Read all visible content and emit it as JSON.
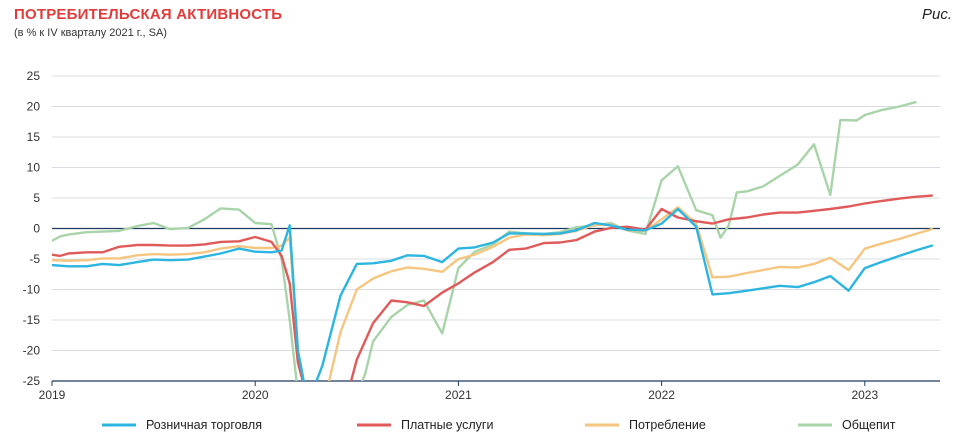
{
  "header": {
    "title": "ПОТРЕБИТЕЛЬСКАЯ АКТИВНОСТЬ",
    "subtitle": "(в % к IV кварталу 2021 г., SA)",
    "figure_label": "Рис."
  },
  "chart_data": {
    "type": "line",
    "title": "ПОТРЕБИТЕЛЬСКАЯ АКТИВНОСТЬ",
    "subtitle": "(в % к IV кварталу 2021 г., SA)",
    "xlabel": "",
    "ylabel": "",
    "ylim": [
      -25,
      25
    ],
    "yticks": [
      -25,
      -20,
      -15,
      -10,
      -5,
      0,
      5,
      10,
      15,
      20,
      25
    ],
    "xlim": [
      2019.0,
      2023.37
    ],
    "xticks": [
      2019,
      2020,
      2021,
      2022,
      2023
    ],
    "xtick_labels": [
      "2019",
      "2020",
      "2021",
      "2022",
      "2023"
    ],
    "grid": "horizontal",
    "legend_position": "bottom",
    "series": [
      {
        "name": "Розничная торговля",
        "color": "#2bb5e0",
        "points": [
          [
            2019.0,
            -6.0
          ],
          [
            2019.08,
            -6.2
          ],
          [
            2019.17,
            -6.2
          ],
          [
            2019.25,
            -5.8
          ],
          [
            2019.33,
            -6.0
          ],
          [
            2019.42,
            -5.5
          ],
          [
            2019.5,
            -5.1
          ],
          [
            2019.58,
            -5.2
          ],
          [
            2019.67,
            -5.1
          ],
          [
            2019.75,
            -4.6
          ],
          [
            2019.83,
            -4.1
          ],
          [
            2019.92,
            -3.3
          ],
          [
            2020.0,
            -3.8
          ],
          [
            2020.08,
            -3.9
          ],
          [
            2020.13,
            -3.6
          ],
          [
            2020.17,
            0.5
          ],
          [
            2020.21,
            -20.0
          ],
          [
            2020.25,
            -27.0
          ],
          [
            2020.29,
            -26.0
          ],
          [
            2020.33,
            -22.5
          ],
          [
            2020.42,
            -11.0
          ],
          [
            2020.5,
            -5.8
          ],
          [
            2020.58,
            -5.7
          ],
          [
            2020.67,
            -5.3
          ],
          [
            2020.75,
            -4.4
          ],
          [
            2020.83,
            -4.5
          ],
          [
            2020.92,
            -5.5
          ],
          [
            2021.0,
            -3.3
          ],
          [
            2021.08,
            -3.1
          ],
          [
            2021.17,
            -2.3
          ],
          [
            2021.25,
            -0.8
          ],
          [
            2021.33,
            -0.8
          ],
          [
            2021.42,
            -0.9
          ],
          [
            2021.5,
            -0.8
          ],
          [
            2021.58,
            -0.3
          ],
          [
            2021.67,
            0.9
          ],
          [
            2021.75,
            0.5
          ],
          [
            2021.83,
            -0.2
          ],
          [
            2021.92,
            -0.3
          ],
          [
            2022.0,
            0.8
          ],
          [
            2022.08,
            3.2
          ],
          [
            2022.17,
            0.3
          ],
          [
            2022.25,
            -10.8
          ],
          [
            2022.33,
            -10.6
          ],
          [
            2022.42,
            -10.2
          ],
          [
            2022.5,
            -9.8
          ],
          [
            2022.58,
            -9.4
          ],
          [
            2022.67,
            -9.6
          ],
          [
            2022.75,
            -8.8
          ],
          [
            2022.83,
            -7.8
          ],
          [
            2022.92,
            -10.2
          ],
          [
            2023.0,
            -6.5
          ],
          [
            2023.08,
            -5.5
          ],
          [
            2023.17,
            -4.5
          ],
          [
            2023.25,
            -3.6
          ],
          [
            2023.33,
            -2.8
          ]
        ]
      },
      {
        "name": "Платные услуги",
        "color": "#e05a5a",
        "points": [
          [
            2019.0,
            -4.3
          ],
          [
            2019.04,
            -4.5
          ],
          [
            2019.08,
            -4.1
          ],
          [
            2019.17,
            -3.9
          ],
          [
            2019.25,
            -3.9
          ],
          [
            2019.33,
            -3.0
          ],
          [
            2019.42,
            -2.7
          ],
          [
            2019.5,
            -2.7
          ],
          [
            2019.58,
            -2.8
          ],
          [
            2019.67,
            -2.8
          ],
          [
            2019.75,
            -2.6
          ],
          [
            2019.83,
            -2.2
          ],
          [
            2019.92,
            -2.1
          ],
          [
            2020.0,
            -1.4
          ],
          [
            2020.08,
            -2.2
          ],
          [
            2020.13,
            -4.5
          ],
          [
            2020.17,
            -9.0
          ],
          [
            2020.21,
            -22.0
          ],
          [
            2020.25,
            -27.0
          ],
          [
            2020.42,
            -27.0
          ],
          [
            2020.46,
            -26.5
          ],
          [
            2020.5,
            -21.5
          ],
          [
            2020.58,
            -15.5
          ],
          [
            2020.67,
            -11.8
          ],
          [
            2020.75,
            -12.1
          ],
          [
            2020.83,
            -12.7
          ],
          [
            2020.92,
            -10.5
          ],
          [
            2021.0,
            -9.0
          ],
          [
            2021.08,
            -7.2
          ],
          [
            2021.17,
            -5.5
          ],
          [
            2021.25,
            -3.5
          ],
          [
            2021.33,
            -3.3
          ],
          [
            2021.42,
            -2.4
          ],
          [
            2021.5,
            -2.3
          ],
          [
            2021.58,
            -1.9
          ],
          [
            2021.67,
            -0.5
          ],
          [
            2021.75,
            0.1
          ],
          [
            2021.83,
            0.3
          ],
          [
            2021.92,
            -0.2
          ],
          [
            2022.0,
            3.2
          ],
          [
            2022.08,
            1.8
          ],
          [
            2022.17,
            1.2
          ],
          [
            2022.25,
            0.8
          ],
          [
            2022.33,
            1.5
          ],
          [
            2022.42,
            1.8
          ],
          [
            2022.5,
            2.3
          ],
          [
            2022.58,
            2.6
          ],
          [
            2022.67,
            2.6
          ],
          [
            2022.75,
            2.9
          ],
          [
            2022.83,
            3.2
          ],
          [
            2022.92,
            3.6
          ],
          [
            2023.0,
            4.1
          ],
          [
            2023.08,
            4.5
          ],
          [
            2023.17,
            4.9
          ],
          [
            2023.25,
            5.2
          ],
          [
            2023.33,
            5.4
          ]
        ]
      },
      {
        "name": "Потребление",
        "color": "#f6c680",
        "points": [
          [
            2019.0,
            -5.2
          ],
          [
            2019.08,
            -5.3
          ],
          [
            2019.17,
            -5.2
          ],
          [
            2019.25,
            -4.9
          ],
          [
            2019.33,
            -4.9
          ],
          [
            2019.42,
            -4.4
          ],
          [
            2019.5,
            -4.2
          ],
          [
            2019.58,
            -4.3
          ],
          [
            2019.67,
            -4.2
          ],
          [
            2019.75,
            -3.9
          ],
          [
            2019.83,
            -3.3
          ],
          [
            2019.92,
            -2.9
          ],
          [
            2020.0,
            -3.2
          ],
          [
            2020.08,
            -3.2
          ],
          [
            2020.13,
            -2.8
          ],
          [
            2020.17,
            -1.5
          ],
          [
            2020.21,
            -20.0
          ],
          [
            2020.25,
            -27.0
          ],
          [
            2020.35,
            -27.0
          ],
          [
            2020.42,
            -17.0
          ],
          [
            2020.5,
            -10.0
          ],
          [
            2020.58,
            -8.2
          ],
          [
            2020.67,
            -7.0
          ],
          [
            2020.75,
            -6.4
          ],
          [
            2020.83,
            -6.6
          ],
          [
            2020.92,
            -7.1
          ],
          [
            2021.0,
            -5.0
          ],
          [
            2021.08,
            -4.3
          ],
          [
            2021.17,
            -3.0
          ],
          [
            2021.25,
            -1.5
          ],
          [
            2021.33,
            -1.0
          ],
          [
            2021.42,
            -1.1
          ],
          [
            2021.5,
            -0.9
          ],
          [
            2021.58,
            -0.4
          ],
          [
            2021.67,
            0.6
          ],
          [
            2021.75,
            0.6
          ],
          [
            2021.83,
            -0.3
          ],
          [
            2021.92,
            -0.4
          ],
          [
            2022.0,
            1.5
          ],
          [
            2022.08,
            3.5
          ],
          [
            2022.17,
            0.8
          ],
          [
            2022.25,
            -8.0
          ],
          [
            2022.33,
            -7.9
          ],
          [
            2022.42,
            -7.3
          ],
          [
            2022.5,
            -6.8
          ],
          [
            2022.58,
            -6.3
          ],
          [
            2022.67,
            -6.4
          ],
          [
            2022.75,
            -5.8
          ],
          [
            2022.83,
            -4.8
          ],
          [
            2022.92,
            -6.8
          ],
          [
            2023.0,
            -3.3
          ],
          [
            2023.08,
            -2.5
          ],
          [
            2023.17,
            -1.7
          ],
          [
            2023.25,
            -0.9
          ],
          [
            2023.33,
            -0.1
          ]
        ]
      },
      {
        "name": "Общепит",
        "color": "#a9d4a9",
        "points": [
          [
            2019.0,
            -2.0
          ],
          [
            2019.04,
            -1.3
          ],
          [
            2019.08,
            -1.0
          ],
          [
            2019.17,
            -0.6
          ],
          [
            2019.25,
            -0.5
          ],
          [
            2019.33,
            -0.4
          ],
          [
            2019.42,
            0.4
          ],
          [
            2019.5,
            0.9
          ],
          [
            2019.58,
            -0.1
          ],
          [
            2019.67,
            0.1
          ],
          [
            2019.75,
            1.5
          ],
          [
            2019.83,
            3.3
          ],
          [
            2019.92,
            3.1
          ],
          [
            2020.0,
            0.9
          ],
          [
            2020.08,
            0.7
          ],
          [
            2020.13,
            -5.0
          ],
          [
            2020.17,
            -15.0
          ],
          [
            2020.21,
            -27.0
          ],
          [
            2020.5,
            -27.0
          ],
          [
            2020.54,
            -24.0
          ],
          [
            2020.58,
            -18.5
          ],
          [
            2020.67,
            -14.5
          ],
          [
            2020.75,
            -12.5
          ],
          [
            2020.83,
            -11.8
          ],
          [
            2020.92,
            -17.2
          ],
          [
            2021.0,
            -6.5
          ],
          [
            2021.08,
            -3.8
          ],
          [
            2021.17,
            -2.6
          ],
          [
            2021.25,
            -0.5
          ],
          [
            2021.33,
            -0.8
          ],
          [
            2021.42,
            -0.9
          ],
          [
            2021.5,
            -0.6
          ],
          [
            2021.58,
            0.2
          ],
          [
            2021.67,
            0.5
          ],
          [
            2021.75,
            0.9
          ],
          [
            2021.83,
            -0.3
          ],
          [
            2021.92,
            -0.9
          ],
          [
            2022.0,
            7.9
          ],
          [
            2022.08,
            10.2
          ],
          [
            2022.17,
            3.0
          ],
          [
            2022.25,
            2.2
          ],
          [
            2022.29,
            -1.5
          ],
          [
            2022.33,
            0.5
          ],
          [
            2022.37,
            5.9
          ],
          [
            2022.42,
            6.1
          ],
          [
            2022.5,
            6.9
          ],
          [
            2022.58,
            8.6
          ],
          [
            2022.67,
            10.5
          ],
          [
            2022.75,
            13.8
          ],
          [
            2022.83,
            5.5
          ],
          [
            2022.88,
            17.8
          ],
          [
            2022.96,
            17.7
          ],
          [
            2023.0,
            18.6
          ],
          [
            2023.08,
            19.4
          ],
          [
            2023.17,
            20.0
          ],
          [
            2023.25,
            20.7
          ]
        ]
      }
    ]
  }
}
